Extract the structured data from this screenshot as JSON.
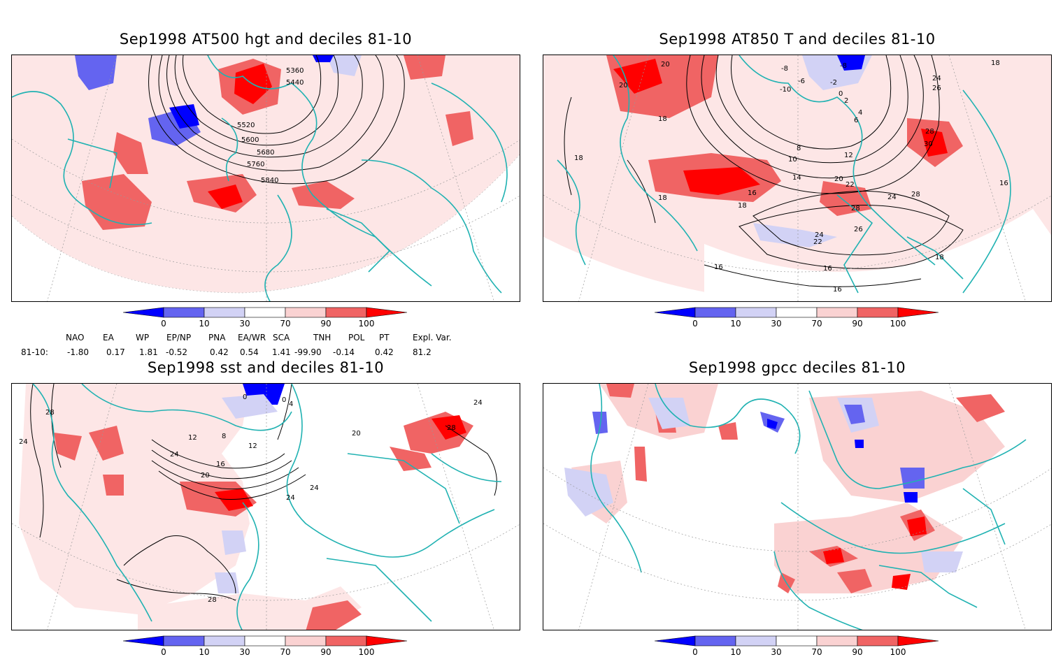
{
  "panels": [
    {
      "id": "p1",
      "title": "Sep1998 AT500 hgt and deciles 81-10",
      "contour_labels": [
        "5360",
        "5440",
        "5520",
        "5600",
        "5680",
        "5760",
        "5840"
      ]
    },
    {
      "id": "p2",
      "title": "Sep1998 AT850 T and deciles 81-10",
      "contour_labels": [
        "20",
        "20",
        "-8",
        "-8",
        "-6",
        "-10",
        "-2",
        "0",
        "2",
        "4",
        "6",
        "8",
        "10",
        "12",
        "14",
        "16",
        "18",
        "18",
        "18",
        "18",
        "20",
        "22",
        "22",
        "24",
        "24",
        "24",
        "26",
        "26",
        "28",
        "28",
        "28",
        "30",
        "16",
        "16",
        "16",
        "18",
        "18",
        "16"
      ]
    },
    {
      "id": "p3",
      "title": "Sep1998 sst and deciles 81-10",
      "contour_labels": [
        "28",
        "24",
        "0",
        "4",
        "8",
        "12",
        "16",
        "20",
        "24",
        "28",
        "28",
        "0",
        "12",
        "24",
        "20",
        "24",
        "24"
      ]
    },
    {
      "id": "p4",
      "title": "Sep1998 gpcc deciles 81-10",
      "contour_labels": []
    }
  ],
  "colorbar": {
    "ticks": [
      "0",
      "10",
      "30",
      "70",
      "90",
      "100"
    ],
    "colors": [
      "#0000ff",
      "#6464f0",
      "#d2d2f5",
      "#ffffff",
      "#fad2d2",
      "#f06464",
      "#ff0000"
    ]
  },
  "indices": {
    "headers": [
      "NAO",
      "EA",
      "WP",
      "EP/NP",
      "PNA",
      "EA/WR",
      "SCA",
      "TNH",
      "POL",
      "PT",
      "Expl. Var."
    ],
    "row_label": "81-10:",
    "values": [
      "-1.80",
      "0.17",
      "1.81",
      "-0.52",
      "0.42",
      "0.54",
      "1.41",
      "-99.90",
      "-0.14",
      "0.42",
      "81.2"
    ]
  }
}
